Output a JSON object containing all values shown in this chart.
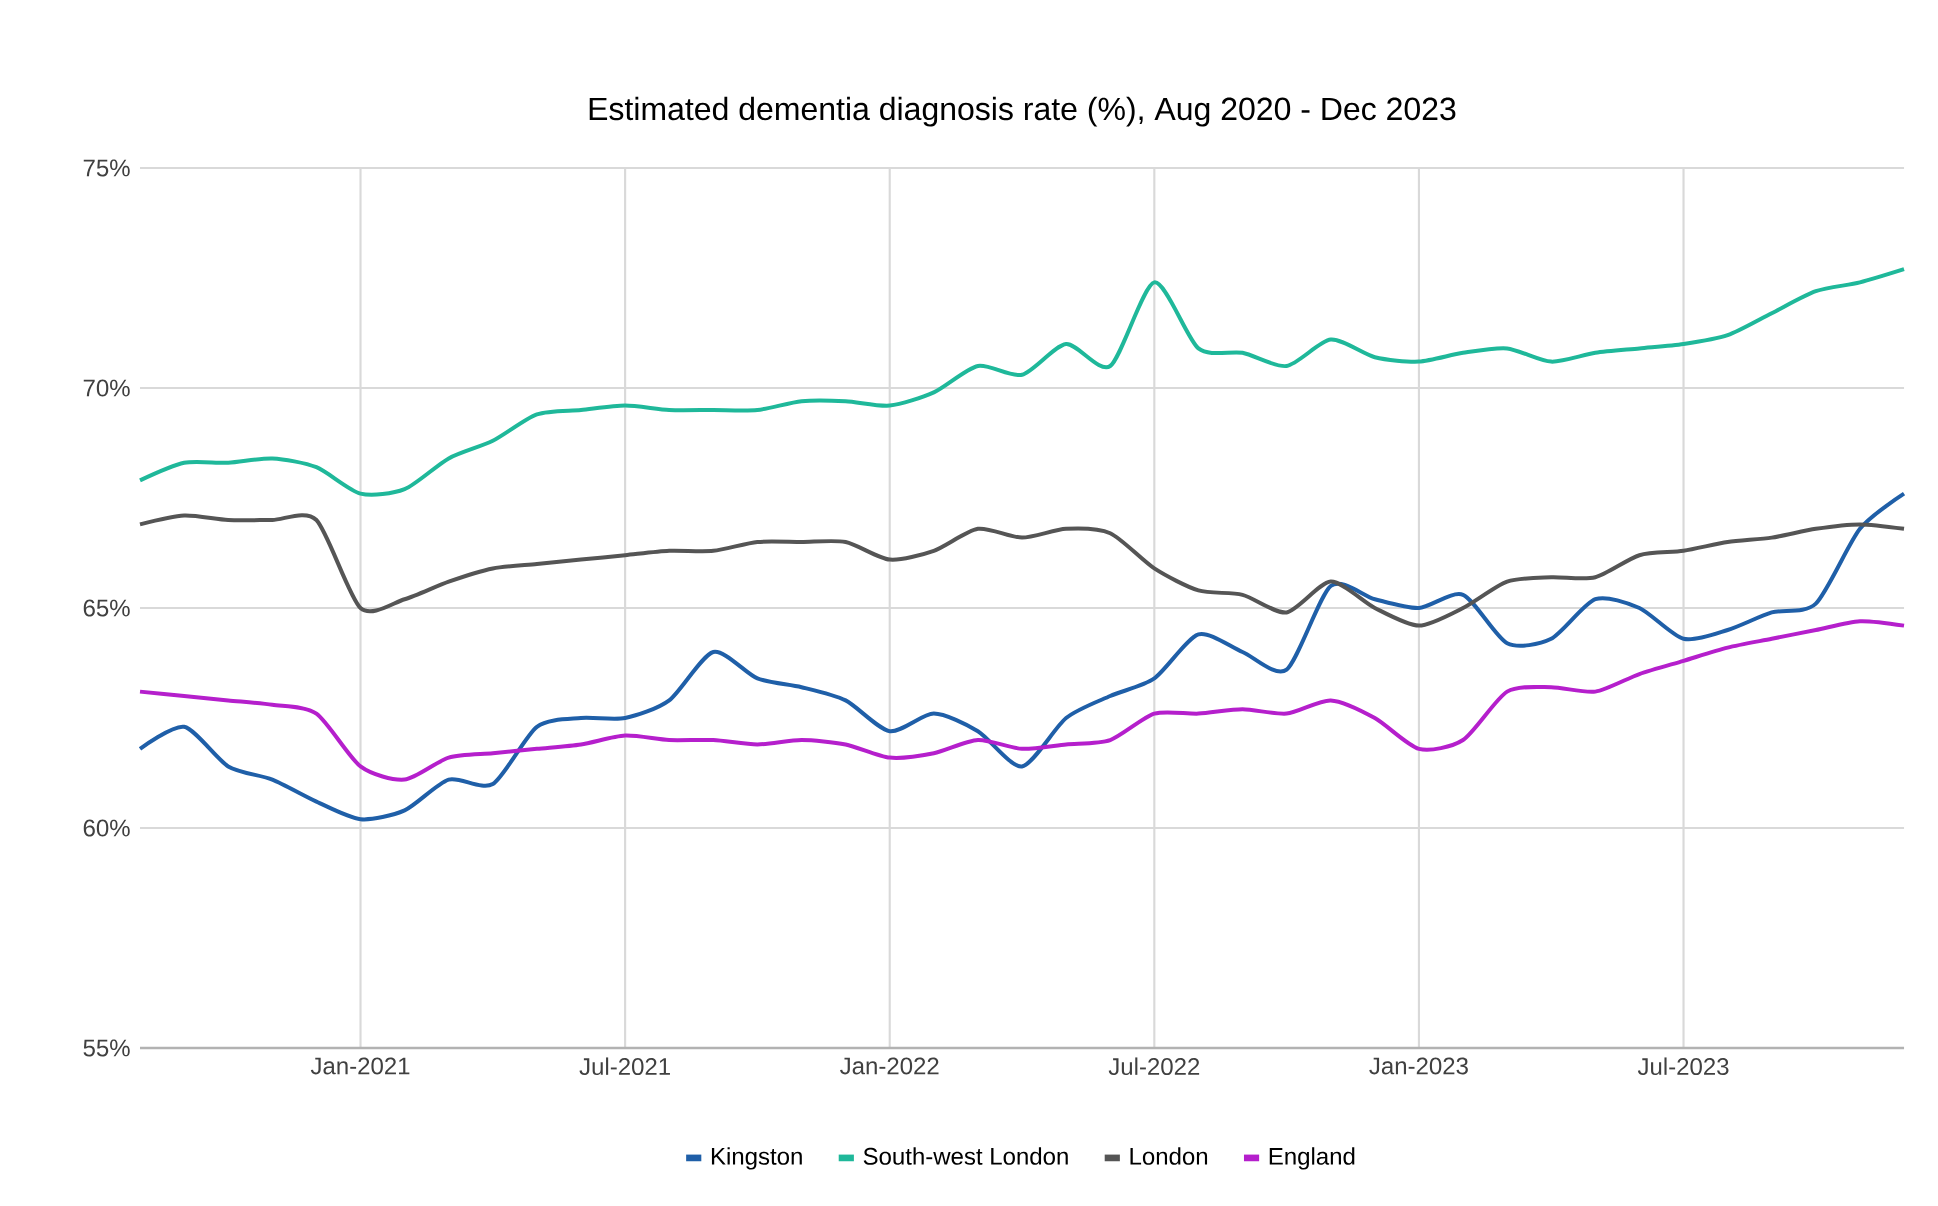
{
  "chart_data": {
    "type": "line",
    "title": "Estimated dementia diagnosis rate (%), Aug 2020 - Dec 2023",
    "x": [
      "2020-08",
      "2020-09",
      "2020-10",
      "2020-11",
      "2020-12",
      "2021-01",
      "2021-02",
      "2021-03",
      "2021-04",
      "2021-05",
      "2021-06",
      "2021-07",
      "2021-08",
      "2021-09",
      "2021-10",
      "2021-11",
      "2021-12",
      "2022-01",
      "2022-02",
      "2022-03",
      "2022-04",
      "2022-05",
      "2022-06",
      "2022-07",
      "2022-08",
      "2022-09",
      "2022-10",
      "2022-11",
      "2022-12",
      "2023-01",
      "2023-02",
      "2023-03",
      "2023-04",
      "2023-05",
      "2023-06",
      "2023-07",
      "2023-08",
      "2023-09",
      "2023-10",
      "2023-11",
      "2023-12"
    ],
    "series": [
      {
        "name": "Kingston",
        "color": "#1f5fa8",
        "values": [
          61.8,
          62.3,
          61.4,
          61.1,
          60.6,
          60.2,
          60.4,
          61.1,
          61.0,
          62.3,
          62.5,
          62.5,
          62.9,
          64.0,
          63.4,
          63.2,
          62.9,
          62.2,
          62.6,
          62.2,
          61.4,
          62.5,
          63.0,
          63.4,
          64.4,
          64.0,
          63.6,
          65.5,
          65.2,
          65.0,
          65.3,
          64.2,
          64.3,
          65.2,
          65.0,
          64.3,
          64.5,
          64.9,
          65.1,
          66.8,
          67.6
        ]
      },
      {
        "name": "South-west London",
        "color": "#1fb89a",
        "values": [
          67.9,
          68.3,
          68.3,
          68.4,
          68.2,
          67.6,
          67.7,
          68.4,
          68.8,
          69.4,
          69.5,
          69.6,
          69.5,
          69.5,
          69.5,
          69.7,
          69.7,
          69.6,
          69.9,
          70.5,
          70.3,
          71.0,
          70.5,
          72.4,
          70.9,
          70.8,
          70.5,
          71.1,
          70.7,
          70.6,
          70.8,
          70.9,
          70.6,
          70.8,
          70.9,
          71.0,
          71.2,
          71.7,
          72.2,
          72.4,
          72.7
        ]
      },
      {
        "name": "London",
        "color": "#555555",
        "values": [
          66.9,
          67.1,
          67.0,
          67.0,
          67.0,
          65.0,
          65.2,
          65.6,
          65.9,
          66.0,
          66.1,
          66.2,
          66.3,
          66.3,
          66.5,
          66.5,
          66.5,
          66.1,
          66.3,
          66.8,
          66.6,
          66.8,
          66.7,
          65.9,
          65.4,
          65.3,
          64.9,
          65.6,
          65.0,
          64.6,
          65.0,
          65.6,
          65.7,
          65.7,
          66.2,
          66.3,
          66.5,
          66.6,
          66.8,
          66.9,
          66.8
        ]
      },
      {
        "name": "England",
        "color": "#b51fcc",
        "values": [
          63.1,
          63.0,
          62.9,
          62.8,
          62.6,
          61.4,
          61.1,
          61.6,
          61.7,
          61.8,
          61.9,
          62.1,
          62.0,
          62.0,
          61.9,
          62.0,
          61.9,
          61.6,
          61.7,
          62.0,
          61.8,
          61.9,
          62.0,
          62.6,
          62.6,
          62.7,
          62.6,
          62.9,
          62.5,
          61.8,
          62.0,
          63.1,
          63.2,
          63.1,
          63.5,
          63.8,
          64.1,
          64.3,
          64.5,
          64.7,
          64.6
        ]
      }
    ],
    "xlim": [
      "2020-08",
      "2023-12"
    ],
    "xticks": [
      {
        "value": "2021-01",
        "label": "Jan-2021"
      },
      {
        "value": "2021-07",
        "label": "Jul-2021"
      },
      {
        "value": "2022-01",
        "label": "Jan-2022"
      },
      {
        "value": "2022-07",
        "label": "Jul-2022"
      },
      {
        "value": "2023-01",
        "label": "Jan-2023"
      },
      {
        "value": "2023-07",
        "label": "Jul-2023"
      }
    ],
    "ylim": [
      55,
      75
    ],
    "yticks": [
      {
        "value": 55,
        "label": "55%"
      },
      {
        "value": 60,
        "label": "60%"
      },
      {
        "value": 65,
        "label": "65%"
      },
      {
        "value": 70,
        "label": "70%"
      },
      {
        "value": 75,
        "label": "75%"
      }
    ],
    "grid": true,
    "legend": "bottom"
  }
}
